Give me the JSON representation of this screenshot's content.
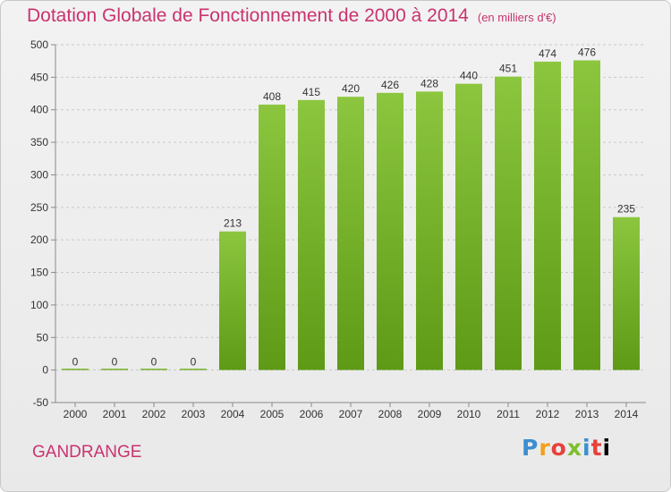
{
  "title": "Dotation Globale de Fonctionnement de 2000 à 2014",
  "unit": "(en milliers d'€)",
  "commune": "GANDRANGE",
  "logo": "Proxiti",
  "colors": {
    "accent": "#c9336f",
    "bar_top": "#8cc63f",
    "bar_bottom": "#5e9a16",
    "grid": "#c9c9c9"
  },
  "chart_data": {
    "type": "bar",
    "categories": [
      "2000",
      "2001",
      "2002",
      "2003",
      "2004",
      "2005",
      "2006",
      "2007",
      "2008",
      "2009",
      "2010",
      "2011",
      "2012",
      "2013",
      "2014"
    ],
    "values": [
      0,
      0,
      0,
      0,
      213,
      408,
      415,
      420,
      426,
      428,
      440,
      451,
      474,
      476,
      235
    ],
    "value_labels": [
      "0",
      "0",
      "0",
      "0",
      "213",
      "408",
      "415",
      "420",
      "426",
      "428",
      "440",
      "451",
      "474",
      "476",
      "235"
    ],
    "ylim": [
      -50,
      500
    ],
    "yticks": [
      -50,
      0,
      50,
      100,
      150,
      200,
      250,
      300,
      350,
      400,
      450,
      500
    ],
    "ytick_labels": [
      "-50",
      "0",
      "50",
      "100",
      "150",
      "200",
      "250",
      "300",
      "350",
      "400",
      "450",
      "500"
    ],
    "grid": "horizontal dashed",
    "legend": "none",
    "title": "Dotation Globale de Fonctionnement de 2000 à 2014",
    "xlabel": "",
    "ylabel": ""
  }
}
